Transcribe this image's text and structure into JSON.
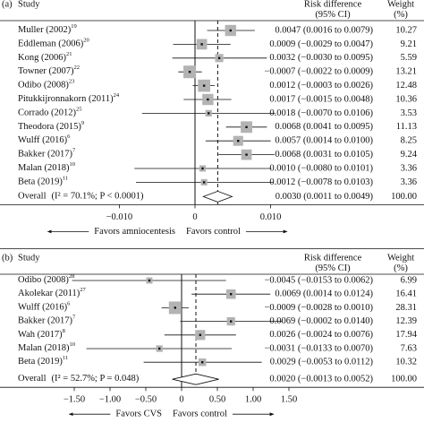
{
  "chart_data": [
    {
      "type": "forest",
      "panel_label": "(a)",
      "headers": {
        "study": "Study",
        "effect": [
          "Risk difference",
          "(95% CI)"
        ],
        "weight": [
          "Weight",
          "(%)"
        ]
      },
      "studies": [
        "Muller (2002)",
        "Eddleman (2006)",
        "Kong (2006)",
        "Towner (2007)",
        "Odibo (2008)",
        "Pitukkijronnakorn (2011)",
        "Corrado (2012)",
        "Theodora (2015)",
        "Wulff (2016)",
        "Bakker (2017)",
        "Malan (2018)",
        "Beta (2019)"
      ],
      "refs": [
        "19",
        "20",
        "21",
        "22",
        "23",
        "24",
        "25",
        "9",
        "6",
        "7",
        "10",
        "11"
      ],
      "values": [
        0.0047,
        0.0009,
        0.0032,
        -0.0007,
        0.0012,
        0.0017,
        0.0018,
        0.0068,
        0.0057,
        0.0068,
        0.001,
        0.0012
      ],
      "lower": [
        0.0016,
        -0.0029,
        -0.003,
        -0.0022,
        -0.0003,
        -0.0015,
        -0.007,
        0.0041,
        0.0014,
        0.0031,
        -0.008,
        -0.0078
      ],
      "upper": [
        0.0079,
        0.0047,
        0.0095,
        0.0009,
        0.0026,
        0.0048,
        0.0106,
        0.0095,
        0.01,
        0.0105,
        0.0101,
        0.0103
      ],
      "value_labels": [
        "0.0047 (0.0016 to 0.0079)",
        "0.0009 (−0.0029 to 0.0047)",
        "0.0032 (−0.0030 to 0.0095)",
        "−0.0007 (−0.0022 to 0.0009)",
        "0.0012 (−0.0003 to 0.0026)",
        "0.0017 (−0.0015 to 0.0048)",
        "0.0018 (−0.0070 to 0.0106)",
        "0.0068 (0.0041 to 0.0095)",
        "0.0057 (0.0014 to 0.0100)",
        "0.0068 (0.0031 to 0.0105)",
        "0.0010 (−0.0080 to 0.0101)",
        "0.0012 (−0.0078 to 0.0103)"
      ],
      "weights": [
        10.27,
        9.21,
        5.59,
        13.21,
        12.48,
        10.36,
        3.53,
        11.13,
        8.25,
        9.24,
        3.36,
        3.36
      ],
      "overall": {
        "label": "Overall",
        "stats": "(I² = 70.1%; P < 0.0001)",
        "value": 0.003,
        "lower": 0.0011,
        "upper": 0.0049,
        "value_label": "0.0030 (0.0011 to 0.0049)",
        "weight": {
          "value": 100,
          "label": "100.00"
        }
      },
      "xlim": [
        -0.013,
        0.013
      ],
      "xticks": [
        {
          "value": -0.01,
          "label": "−0.010"
        },
        0,
        {
          "value": 0.01,
          "label": "0.010"
        }
      ],
      "annotations": {
        "left": "Favors amniocentesis",
        "right": "Favors control"
      },
      "box_color": "#b3b3b3"
    },
    {
      "type": "forest",
      "panel_label": "(b)",
      "headers": {
        "study": "Study",
        "effect": [
          "Risk difference",
          "(95% CI)"
        ],
        "weight": [
          "Weight",
          "(%)"
        ]
      },
      "studies": [
        "Odibo (2008)",
        "Akolekar (2011)",
        "Wulff (2016)",
        "Bakker (2017)",
        "Wah (2017)",
        "Malan (2018)",
        "Beta (2019)"
      ],
      "refs": [
        "28",
        "27",
        "6",
        "7",
        "8",
        "10",
        "11"
      ],
      "values": [
        -0.0045,
        0.0069,
        -0.0009,
        0.0069,
        0.0026,
        -0.0031,
        0.0029
      ],
      "lower": [
        -0.0153,
        0.0014,
        -0.0028,
        -0.0002,
        -0.0024,
        -0.0133,
        -0.0053
      ],
      "upper": [
        0.0062,
        0.0124,
        0.001,
        0.014,
        0.0076,
        0.007,
        0.0112
      ],
      "value_labels": [
        "−0.0045 (−0.0153 to 0.0062)",
        "0.0069 (0.0014 to 0.0124)",
        "−0.0009 (−0.0028 to 0.0010)",
        "0.0069 (−0.0002 to 0.0140)",
        "0.0026 (−0.0024 to 0.0076)",
        "−0.0031 (−0.0133 to 0.0070)",
        "0.0029 (−0.0053 to 0.0112)"
      ],
      "weights": [
        6.99,
        16.41,
        28.31,
        12.39,
        17.94,
        7.63,
        10.32
      ],
      "overall": {
        "label": "Overall",
        "stats": "(I² = 52.7%; P = 0.048)",
        "value": 0.002,
        "lower": -0.0013,
        "upper": 0.0052,
        "value_label": "0.0020 (−0.0013 to 0.0052)",
        "weight": {
          "value": 100,
          "label": "100.00"
        }
      },
      "xlim": [
        -0.02,
        0.016
      ],
      "xticks": [
        {
          "value": -0.015,
          "label": "−1.50"
        },
        {
          "value": -0.01,
          "label": "−1.00"
        },
        {
          "value": -0.005,
          "label": "−0.50"
        },
        0,
        {
          "value": 0.005,
          "label": "0.50"
        },
        {
          "value": 0.01,
          "label": "1.00"
        },
        {
          "value": 0.015,
          "label": "1.50"
        }
      ],
      "annotations": {
        "left": "Favors CVS",
        "right": "Favors control"
      },
      "box_color": "#b3b3b3"
    }
  ]
}
